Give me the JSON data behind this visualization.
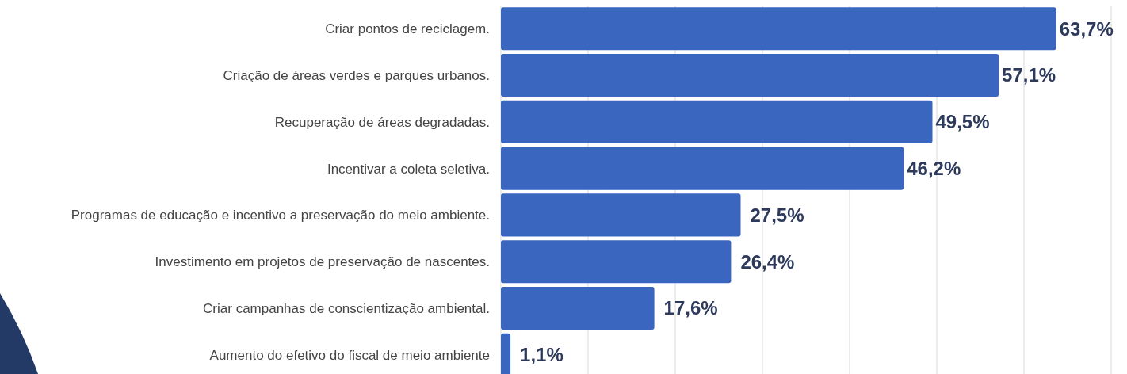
{
  "chart_data": {
    "type": "bar",
    "orientation": "horizontal",
    "categories": [
      "Criar pontos de reciclagem.",
      "Criação de áreas verdes e parques urbanos.",
      "Recuperação de áreas degradadas.",
      "Incentivar a coleta seletiva.",
      "Programas de educação e incentivo a preservação do meio ambiente.",
      "Investimento em projetos de preservação de nascentes.",
      "Criar campanhas de conscientização ambiental.",
      "Aumento do efetivo do fiscal de meio ambiente"
    ],
    "values": [
      63.7,
      57.1,
      49.5,
      46.2,
      27.5,
      26.4,
      17.6,
      1.1
    ],
    "value_labels": [
      "63,7%",
      "57,1%",
      "49,5%",
      "46,2%",
      "27,5%",
      "26,4%",
      "17,6%",
      "1,1%"
    ],
    "color": "#3a66c0",
    "xlim": [
      0,
      70
    ],
    "xticks": [
      {
        "value": 0,
        "label": null
      },
      {
        "value": 10,
        "label": null
      },
      {
        "value": 20,
        "label": null
      },
      {
        "value": 30,
        "label": null
      },
      {
        "value": 40,
        "label": null
      },
      {
        "value": 50,
        "label": null
      },
      {
        "value": 60,
        "label": null
      },
      {
        "value": 70,
        "label": null
      }
    ],
    "grid": "x"
  }
}
